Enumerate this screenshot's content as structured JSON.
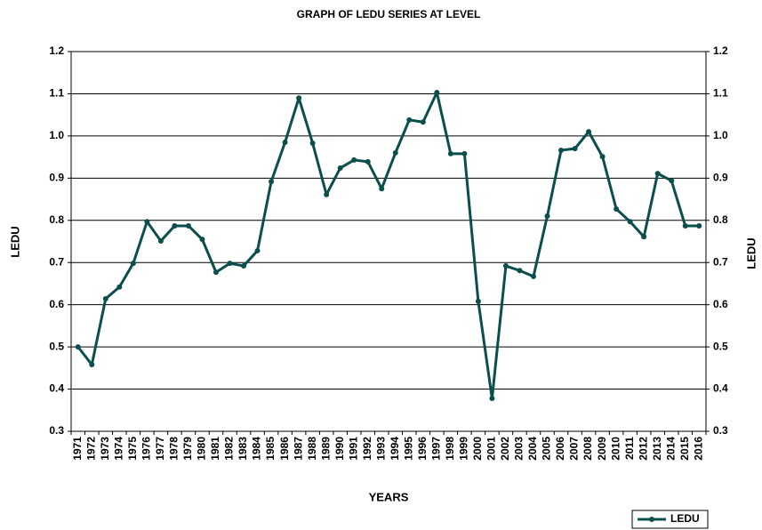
{
  "chart_data": {
    "type": "line",
    "title": "GRAPH OF LEDU SERIES AT LEVEL",
    "x_label": "YEARS",
    "y_label": "LEDU",
    "categories": [
      "1971",
      "1972",
      "1973",
      "1974",
      "1975",
      "1976",
      "1977",
      "1978",
      "1979",
      "1980",
      "1981",
      "1982",
      "1983",
      "1984",
      "1985",
      "1986",
      "1987",
      "1988",
      "1989",
      "1990",
      "1991",
      "1992",
      "1993",
      "1994",
      "1995",
      "1996",
      "1997",
      "1998",
      "1999",
      "2000",
      "2001",
      "2002",
      "2003",
      "2004",
      "2005",
      "2006",
      "2007",
      "2008",
      "2009",
      "2010",
      "2011",
      "2012",
      "2013",
      "2014",
      "2015",
      "2016"
    ],
    "series": [
      {
        "name": "LEDU",
        "color": "#0b4f4c",
        "values": [
          0.5,
          0.458,
          0.614,
          0.642,
          0.698,
          0.797,
          0.751,
          0.787,
          0.787,
          0.755,
          0.677,
          0.698,
          0.692,
          0.728,
          0.892,
          0.985,
          1.09,
          0.983,
          0.861,
          0.924,
          0.943,
          0.939,
          0.875,
          0.96,
          1.038,
          1.033,
          1.103,
          0.958,
          0.958,
          0.608,
          0.378,
          0.692,
          0.681,
          0.667,
          0.81,
          0.966,
          0.97,
          1.01,
          0.951,
          0.827,
          0.797,
          0.761,
          0.911,
          0.894,
          0.787,
          0.787
        ]
      }
    ],
    "ylim": [
      0.3,
      1.2
    ],
    "yticks": [
      0.3,
      0.4,
      0.5,
      0.6,
      0.7,
      0.8,
      0.9,
      {
        "value": 1,
        "label": "1.0"
      },
      1.1,
      1.2
    ],
    "grid": true,
    "legend": "bottom-right"
  }
}
